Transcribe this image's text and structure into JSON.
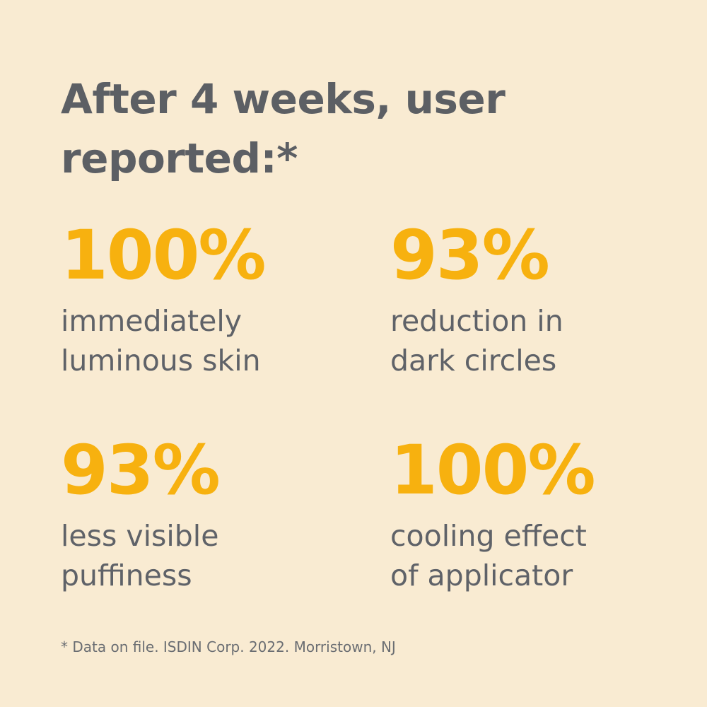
{
  "headline": "After 4 weeks, user reported:*",
  "stats": [
    {
      "value": "100%",
      "description": "immediately\nluminous skin"
    },
    {
      "value": "93%",
      "description": "reduction in\ndark circles"
    },
    {
      "value": "93%",
      "description": "less visible\npuffiness"
    },
    {
      "value": "100%",
      "description": "cooling effect\nof applicator"
    }
  ],
  "footnote": "* Data on file. ISDIN Corp. 2022. Morristown, NJ",
  "colors": {
    "background": "#f9ebd2",
    "headline": "#5c5f64",
    "stat_value": "#f7b10f",
    "stat_description": "#5f6268",
    "footnote": "#6a6d72"
  }
}
